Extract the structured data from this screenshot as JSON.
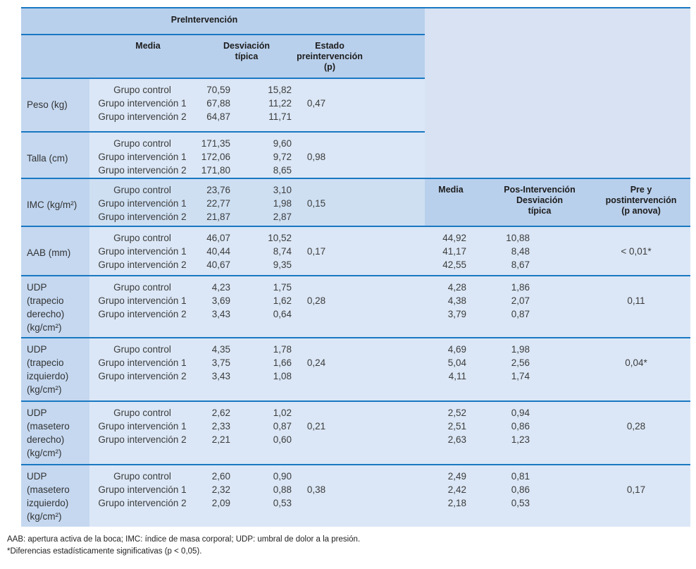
{
  "table": {
    "pre_section": {
      "title": "PreIntervención",
      "col_media": "Media",
      "col_sd": "Desviación\ntípica",
      "col_p": "Estado\npreintervención\n(p)"
    },
    "post_section": {
      "col_media": "Media",
      "col_sd": "Pos-Intervención\nDesviación\ntípica",
      "col_p": "Pre y\npostintervención\n(p anova)"
    },
    "rows": [
      {
        "label": "Peso (kg)",
        "groups": [
          "Grupo control",
          "Grupo intervención 1",
          "Grupo intervención 2"
        ],
        "pre_media": [
          "70,59",
          "67,88",
          "64,87"
        ],
        "pre_sd": [
          "15,82",
          "11,22",
          "11,71"
        ],
        "pre_p": "0,47",
        "post_media": [],
        "post_sd": [],
        "post_p": ""
      },
      {
        "label": "Talla (cm)",
        "groups": [
          "Grupo control",
          "Grupo intervención 1",
          "Grupo intervención 2"
        ],
        "pre_media": [
          "171,35",
          "172,06",
          "171,80"
        ],
        "pre_sd": [
          "9,60",
          "9,72",
          "8,65"
        ],
        "pre_p": "0,98",
        "post_media": [],
        "post_sd": [],
        "post_p": ""
      },
      {
        "label": "IMC (kg/m²)",
        "groups": [
          "Grupo control",
          "Grupo intervención 1",
          "Grupo intervención 2"
        ],
        "pre_media": [
          "23,76",
          "22,77",
          "21,87"
        ],
        "pre_sd": [
          "3,10",
          "1,98",
          "2,87"
        ],
        "pre_p": "0,15",
        "post_media": [],
        "post_sd": [],
        "post_p": ""
      },
      {
        "label": "AAB (mm)",
        "groups": [
          "Grupo control",
          "Grupo intervención 1",
          "Grupo intervención 2"
        ],
        "pre_media": [
          "46,07",
          "40,44",
          "40,67"
        ],
        "pre_sd": [
          "10,52",
          "8,74",
          "9,35"
        ],
        "pre_p": "0,17",
        "post_media": [
          "44,92",
          "41,17",
          "42,55"
        ],
        "post_sd": [
          "10,88",
          "8,48",
          "8,67"
        ],
        "post_p": "< 0,01*"
      },
      {
        "label": "UDP\n(trapecio\nderecho)\n(kg/cm²)",
        "groups": [
          "Grupo control",
          "Grupo intervención 1",
          "Grupo intervención 2"
        ],
        "pre_media": [
          "4,23",
          "3,69",
          "3,43"
        ],
        "pre_sd": [
          "1,75",
          "1,62",
          "0,64"
        ],
        "pre_p": "0,28",
        "post_media": [
          "4,28",
          "4,38",
          "3,79"
        ],
        "post_sd": [
          "1,86",
          "2,07",
          "0,87"
        ],
        "post_p": "0,11"
      },
      {
        "label": "UDP\n(trapecio\nizquierdo)\n(kg/cm²)",
        "groups": [
          "Grupo control",
          "Grupo intervención 1",
          "Grupo intervención 2"
        ],
        "pre_media": [
          "4,35",
          "3,75",
          "3,43"
        ],
        "pre_sd": [
          "1,78",
          "1,66",
          "1,08"
        ],
        "pre_p": "0,24",
        "post_media": [
          "4,69",
          "5,04",
          "4,11"
        ],
        "post_sd": [
          "1,98",
          "2,56",
          "1,74"
        ],
        "post_p": "0,04*"
      },
      {
        "label": "UDP\n(masetero\nderecho)\n(kg/cm²)",
        "groups": [
          "Grupo control",
          "Grupo intervención 1",
          "Grupo intervención 2"
        ],
        "pre_media": [
          "2,62",
          "2,33",
          "2,21"
        ],
        "pre_sd": [
          "1,02",
          "0,87",
          "0,60"
        ],
        "pre_p": "0,21",
        "post_media": [
          "2,52",
          "2,51",
          "2,63"
        ],
        "post_sd": [
          "0,94",
          "0,86",
          "1,23"
        ],
        "post_p": "0,28"
      },
      {
        "label": "UDP\n(masetero\nizquierdo)\n(kg/cm²)",
        "groups": [
          "Grupo control",
          "Grupo intervención 1",
          "Grupo intervención 2"
        ],
        "pre_media": [
          "2,60",
          "2,32",
          "2,09"
        ],
        "pre_sd": [
          "0,90",
          "0,88",
          "0,53"
        ],
        "pre_p": "0,38",
        "post_media": [
          "2,49",
          "2,42",
          "2,18"
        ],
        "post_sd": [
          "0,81",
          "0,86",
          "0,53"
        ],
        "post_p": "0,17"
      }
    ]
  },
  "footnotes": {
    "abbreviations": "AAB: apertura activa de la boca; IMC: índice de masa corporal; UDP: umbral de dolor a la presión.",
    "significance": "*Diferencias estadísticamente significativas (p < 0,05)."
  },
  "colors": {
    "divider_blue": "#1a78c2",
    "header_bg": "#b9d0ec",
    "label_bg": "#c5d8f0",
    "data_bg": "#dbe7f6",
    "imc_data_bg": "#cedff2",
    "right_panel_bg": "#d8e2f3"
  }
}
